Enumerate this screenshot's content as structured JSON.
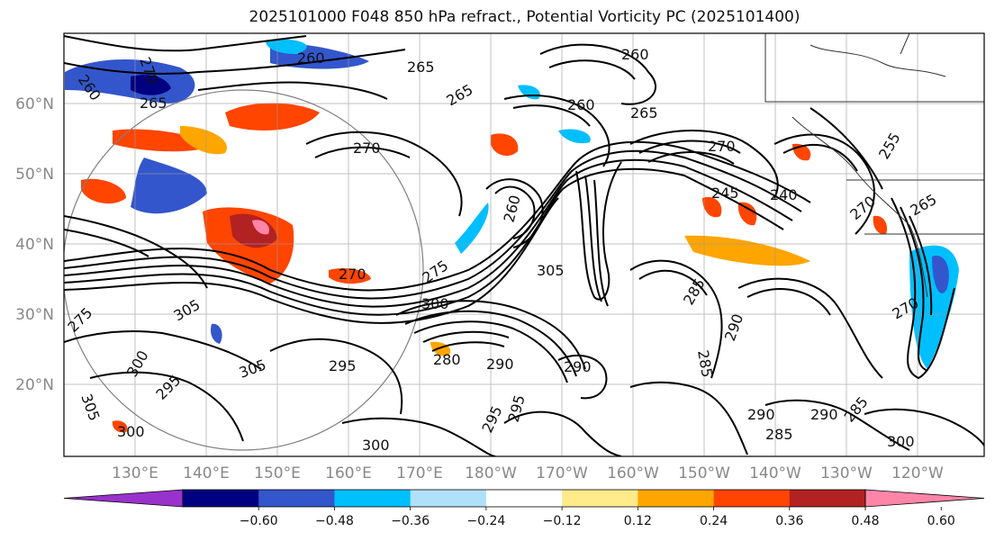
{
  "title": "2025101000 F048 850 hPa refract., Potential Vorticity PC (2025101400)",
  "lat_labels": [
    "60°N",
    "50°N",
    "40°N",
    "30°N",
    "20°N"
  ],
  "lon_labels": [
    "130°E",
    "140°E",
    "150°E",
    "160°E",
    "170°E",
    "180°W",
    "170°W",
    "160°W",
    "150°W",
    "140°W",
    "130°W",
    "120°W"
  ],
  "colorbar": {
    "colors": [
      "#9932cc",
      "#000080",
      "#3356cc",
      "#00bfff",
      "#b0e0fa",
      "#ffffff",
      "#ffeb8a",
      "#ffa500",
      "#ff4500",
      "#b22222",
      "#ff85a8"
    ],
    "tick_labels": [
      "−0.60",
      "−0.48",
      "−0.36",
      "−0.24",
      "−0.12",
      "0.12",
      "0.24",
      "0.36",
      "0.48",
      "0.60"
    ]
  },
  "contour_labels": [
    "260",
    "265",
    "270",
    "260",
    "265",
    "265",
    "260",
    "265",
    "270",
    "260",
    "270",
    "255",
    "245",
    "240",
    "270",
    "265",
    "260",
    "275",
    "305",
    "270",
    "305",
    "285",
    "290",
    "295",
    "300",
    "305",
    "290",
    "285",
    "290",
    "280",
    "300",
    "295",
    "275",
    "290",
    "270",
    "305",
    "300",
    "295",
    "300",
    "290",
    "285",
    "300",
    "295",
    "285"
  ]
}
